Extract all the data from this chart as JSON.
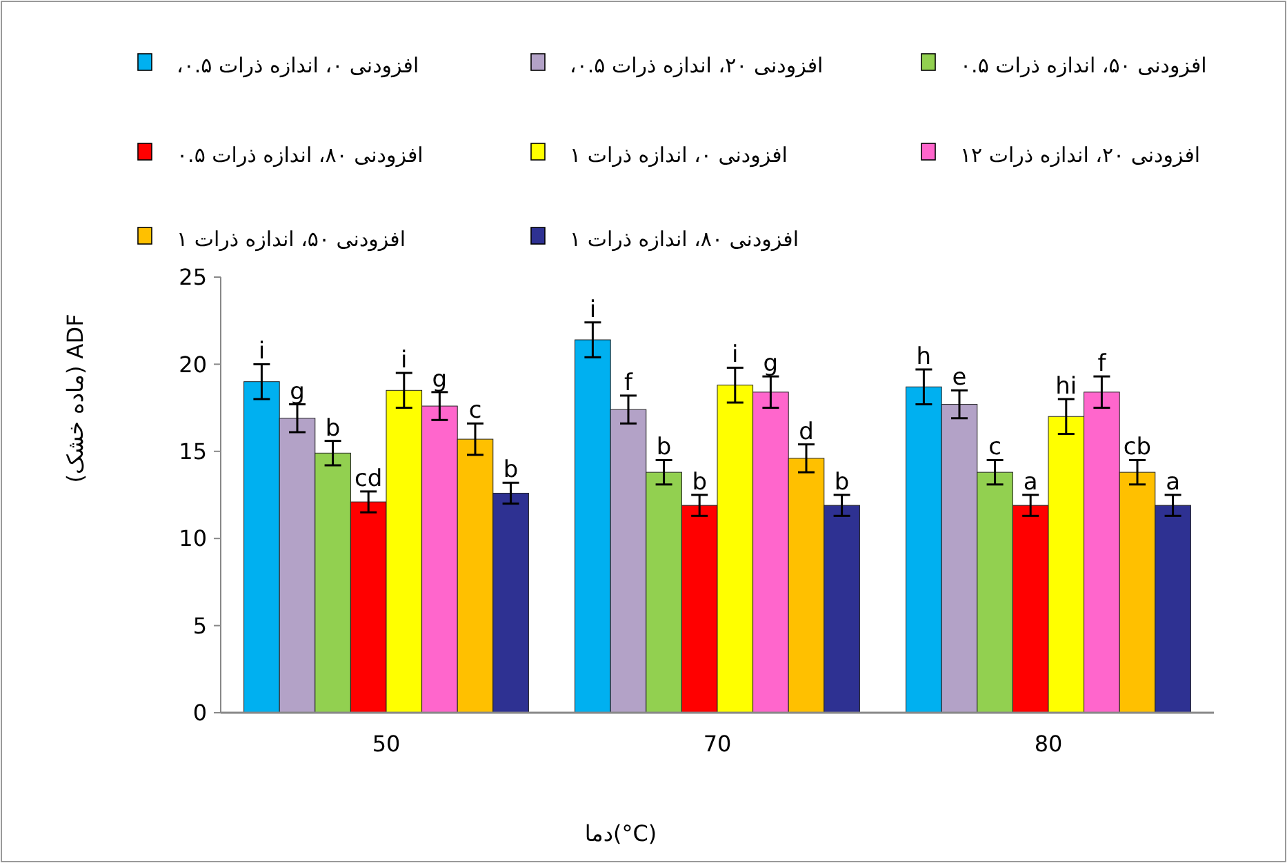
{
  "chart_data": {
    "type": "bar",
    "xlabel": "دما(°C)",
    "ylabel": "(ماده خشک) ADF",
    "categories": [
      "50",
      "70",
      "80"
    ],
    "ylim": [
      0,
      25
    ],
    "yticks": [
      0,
      5,
      10,
      15,
      20,
      25
    ],
    "grid": false,
    "legend": "top",
    "series": [
      {
        "name": "افزودنی ۰، اندازه ذرات ۰.۵،",
        "color": "#00b0f0",
        "values": [
          19.0,
          21.4,
          18.7
        ],
        "errors": [
          1.0,
          1.0,
          1.0
        ],
        "value_labels": [
          "i",
          "i",
          "h"
        ]
      },
      {
        "name": "افزودنی ۲۰، اندازه ذرات ۰.۵،",
        "color": "#b3a2c7",
        "values": [
          16.9,
          17.4,
          17.7
        ],
        "errors": [
          0.8,
          0.8,
          0.8
        ],
        "value_labels": [
          "g",
          "f",
          "e"
        ]
      },
      {
        "name": "افزودنی ۵۰، اندازه ذرات ۰.۵",
        "color": "#92d050",
        "values": [
          14.9,
          13.8,
          13.8
        ],
        "errors": [
          0.7,
          0.7,
          0.7
        ],
        "value_labels": [
          "b",
          "b",
          "c"
        ]
      },
      {
        "name": "افزودنی ۸۰، اندازه ذرات ۰.۵",
        "color": "#ff0000",
        "values": [
          12.1,
          11.9,
          11.9
        ],
        "errors": [
          0.6,
          0.6,
          0.6
        ],
        "value_labels": [
          "cd",
          "b",
          "a"
        ]
      },
      {
        "name": "افزودنی ۰، اندازه ذرات ۱",
        "color": "#ffff00",
        "values": [
          18.5,
          18.8,
          17.0
        ],
        "errors": [
          1.0,
          1.0,
          1.0
        ],
        "value_labels": [
          "i",
          "i",
          "hi"
        ]
      },
      {
        "name": "افزودنی ۲۰، اندازه ذرات ۱۲",
        "color": "#ff66cc",
        "values": [
          17.6,
          18.4,
          18.4
        ],
        "errors": [
          0.8,
          0.9,
          0.9
        ],
        "value_labels": [
          "g",
          "g",
          "f"
        ]
      },
      {
        "name": "افزودنی ۵۰، اندازه ذرات ۱",
        "color": "#ffc000",
        "values": [
          15.7,
          14.6,
          13.8
        ],
        "errors": [
          0.9,
          0.8,
          0.7
        ],
        "value_labels": [
          "c",
          "d",
          "cb"
        ]
      },
      {
        "name": "افزودنی ۸۰، اندازه ذرات ۱",
        "color": "#2e3192",
        "values": [
          12.6,
          11.9,
          11.9
        ],
        "errors": [
          0.6,
          0.6,
          0.6
        ],
        "value_labels": [
          "b",
          "b",
          "a"
        ]
      }
    ]
  }
}
